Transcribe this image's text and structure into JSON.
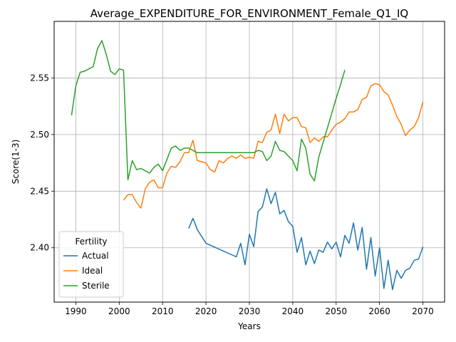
{
  "chart_data": {
    "type": "line",
    "title": "Average_EXPENDITURE_FOR_ENVIRONMENT_Female_Q1_IQ",
    "xlabel": "Years",
    "ylabel": "Score(1-3)",
    "xlim": [
      1985,
      2075
    ],
    "ylim": [
      2.352,
      2.6
    ],
    "xticks": [
      1990,
      2000,
      2010,
      2020,
      2030,
      2040,
      2050,
      2060,
      2070
    ],
    "yticks": [
      2.4,
      2.45,
      2.5,
      2.55
    ],
    "xtick_labels": [
      "1990",
      "2000",
      "2010",
      "2020",
      "2030",
      "2040",
      "2050",
      "2060",
      "2070"
    ],
    "ytick_labels": [
      "2.40",
      "2.45",
      "2.50",
      "2.55"
    ],
    "grid": true,
    "legend_title": "Fertility",
    "legend_position": "lower-left",
    "series": [
      {
        "name": "Actual",
        "color": "#1f77b4",
        "x": [
          2016,
          2017,
          2018,
          2020,
          2027,
          2028,
          2029,
          2030,
          2031,
          2032,
          2033,
          2034,
          2035,
          2036,
          2037,
          2038,
          2039,
          2040,
          2041,
          2042,
          2043,
          2044,
          2045,
          2046,
          2047,
          2048,
          2049,
          2050,
          2051,
          2052,
          2053,
          2054,
          2055,
          2056,
          2057,
          2058,
          2059,
          2060,
          2061,
          2062,
          2063,
          2064,
          2065,
          2066,
          2067,
          2068,
          2069,
          2070
        ],
        "y": [
          2.417,
          2.426,
          2.416,
          2.404,
          2.392,
          2.404,
          2.385,
          2.412,
          2.401,
          2.432,
          2.436,
          2.452,
          2.439,
          2.449,
          2.43,
          2.433,
          2.423,
          2.419,
          2.396,
          2.409,
          2.385,
          2.397,
          2.386,
          2.398,
          2.396,
          2.405,
          2.399,
          2.405,
          2.392,
          2.411,
          2.404,
          2.422,
          2.398,
          2.418,
          2.381,
          2.409,
          2.375,
          2.4,
          2.364,
          2.389,
          2.363,
          2.38,
          2.373,
          2.38,
          2.382,
          2.389,
          2.39,
          2.401
        ]
      },
      {
        "name": "Ideal",
        "color": "#ff7f0e",
        "x": [
          2001,
          2002,
          2003,
          2004,
          2005,
          2006,
          2007,
          2008,
          2009,
          2010,
          2011,
          2012,
          2013,
          2014,
          2015,
          2016,
          2017,
          2018,
          2019,
          2020,
          2021,
          2022,
          2023,
          2024,
          2025,
          2026,
          2027,
          2028,
          2029,
          2030,
          2031,
          2032,
          2033,
          2034,
          2035,
          2036,
          2037,
          2038,
          2039,
          2040,
          2041,
          2042,
          2043,
          2044,
          2045,
          2046,
          2047,
          2048,
          2049,
          2050,
          2051,
          2052,
          2053,
          2054,
          2055,
          2056,
          2057,
          2058,
          2059,
          2060,
          2061,
          2062,
          2063,
          2064,
          2065,
          2066,
          2067,
          2068,
          2069,
          2070
        ],
        "y": [
          2.442,
          2.447,
          2.447,
          2.44,
          2.435,
          2.452,
          2.458,
          2.46,
          2.453,
          2.453,
          2.466,
          2.472,
          2.471,
          2.476,
          2.484,
          2.484,
          2.495,
          2.477,
          2.476,
          2.475,
          2.469,
          2.467,
          2.477,
          2.475,
          2.479,
          2.481,
          2.479,
          2.482,
          2.479,
          2.48,
          2.479,
          2.494,
          2.493,
          2.502,
          2.504,
          2.518,
          2.501,
          2.518,
          2.512,
          2.515,
          2.515,
          2.507,
          2.506,
          2.493,
          2.497,
          2.494,
          2.498,
          2.498,
          2.504,
          2.509,
          2.511,
          2.514,
          2.52,
          2.52,
          2.522,
          2.531,
          2.533,
          2.543,
          2.545,
          2.544,
          2.538,
          2.535,
          2.526,
          2.516,
          2.509,
          2.499,
          2.504,
          2.507,
          2.515,
          2.529
        ]
      },
      {
        "name": "Sterile",
        "color": "#2ca02c",
        "x": [
          1989,
          1990,
          1991,
          1992,
          1993,
          1994,
          1995,
          1996,
          1997,
          1998,
          1999,
          2000,
          2001,
          2002,
          2003,
          2004,
          2005,
          2006,
          2007,
          2008,
          2009,
          2010,
          2011,
          2012,
          2013,
          2014,
          2015,
          2016,
          2017,
          2018,
          2019,
          2020,
          2021,
          2022,
          2023,
          2024,
          2025,
          2026,
          2027,
          2028,
          2029,
          2030,
          2031,
          2032,
          2033,
          2034,
          2035,
          2036,
          2037,
          2038,
          2039,
          2040,
          2041,
          2042,
          2043,
          2044,
          2045,
          2046,
          2047,
          2048,
          2049,
          2050,
          2051,
          2052
        ],
        "y": [
          2.517,
          2.543,
          2.555,
          2.556,
          2.558,
          2.56,
          2.576,
          2.583,
          2.571,
          2.556,
          2.553,
          2.558,
          2.557,
          2.46,
          2.477,
          2.469,
          2.47,
          2.468,
          2.466,
          2.471,
          2.474,
          2.468,
          2.478,
          2.488,
          2.49,
          2.486,
          2.488,
          2.488,
          2.486,
          2.484,
          2.484,
          2.484,
          2.484,
          2.484,
          2.484,
          2.484,
          2.484,
          2.484,
          2.484,
          2.484,
          2.484,
          2.484,
          2.484,
          2.486,
          2.485,
          2.477,
          2.481,
          2.494,
          2.486,
          2.485,
          2.481,
          2.477,
          2.468,
          2.496,
          2.488,
          2.465,
          2.459,
          2.48,
          2.493,
          2.506,
          2.519,
          2.532,
          2.544,
          2.557
        ]
      }
    ]
  }
}
